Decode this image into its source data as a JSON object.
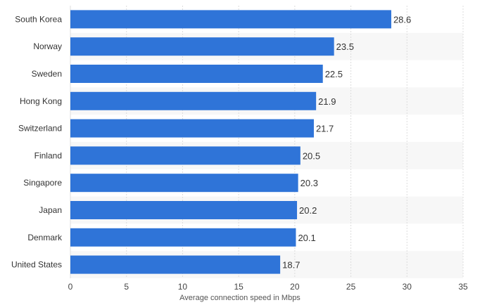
{
  "chart_data": {
    "type": "bar",
    "orientation": "horizontal",
    "categories": [
      "South Korea",
      "Norway",
      "Sweden",
      "Hong Kong",
      "Switzerland",
      "Finland",
      "Singapore",
      "Japan",
      "Denmark",
      "United States"
    ],
    "values": [
      28.6,
      23.5,
      22.5,
      21.9,
      21.7,
      20.5,
      20.3,
      20.2,
      20.1,
      18.7
    ],
    "value_labels": [
      "28.6",
      "23.5",
      "22.5",
      "21.9",
      "21.7",
      "20.5",
      "20.3",
      "20.2",
      "20.1",
      "18.7"
    ],
    "xlabel": "Average connection speed in Mbps",
    "xlim": [
      0,
      35
    ],
    "xticks": [
      0,
      5,
      10,
      15,
      20,
      25,
      30,
      35
    ],
    "grid": true,
    "colors": {
      "bar": "#2f74d8",
      "band": "#f7f7f7",
      "grid": "#dcdcdc"
    }
  }
}
